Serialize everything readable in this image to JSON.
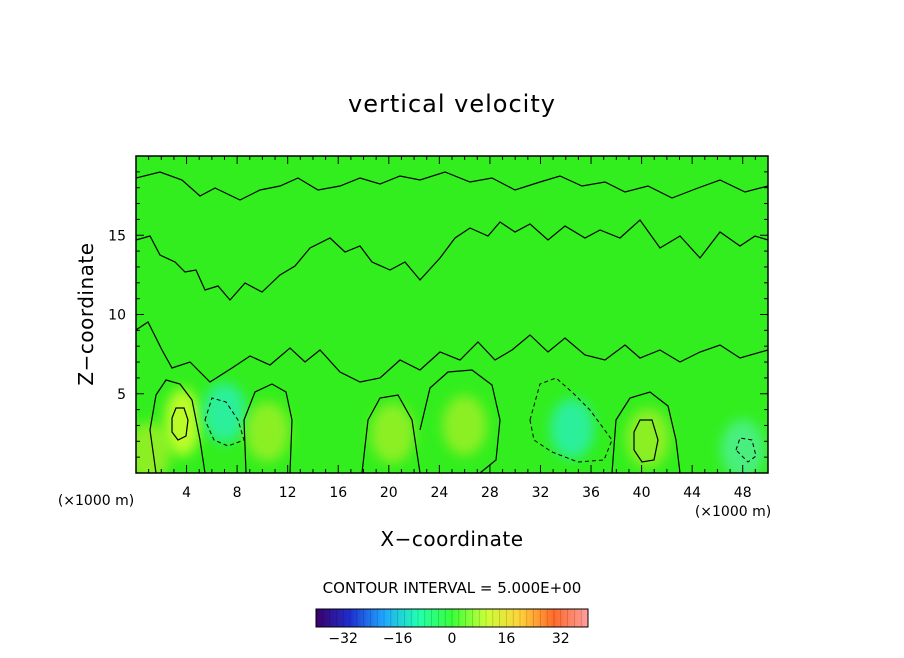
{
  "chart_data": {
    "type": "contour",
    "title": "vertical velocity",
    "xlabel": "X−coordinate",
    "ylabel": "Z−coordinate",
    "x_unit_left": "(×1000 m)",
    "x_unit_right": "(×1000 m)",
    "xlim": [
      0,
      50
    ],
    "ylim": [
      0,
      20
    ],
    "x_ticks": [
      4,
      8,
      12,
      16,
      20,
      24,
      28,
      32,
      36,
      40,
      44,
      48
    ],
    "x_tick_labels": [
      "4",
      "8",
      "12",
      "16",
      "20",
      "24",
      "28",
      "32",
      "36",
      "40",
      "44",
      "48"
    ],
    "y_ticks": [
      5,
      10,
      15
    ],
    "y_tick_labels": [
      "5",
      "10",
      "15"
    ],
    "contour_interval_text": "CONTOUR INTERVAL = 5.000E+00",
    "contour_interval": 5.0,
    "colorbar": {
      "range": [
        -40,
        40
      ],
      "ticks": [
        -32,
        -16,
        0,
        16,
        32
      ],
      "tick_labels": [
        "−32",
        "−16",
        "0",
        "16",
        "32"
      ],
      "colormap": "rainbow",
      "colors": [
        "#3a006a",
        "#1f2fd0",
        "#1fa8ff",
        "#22ffb0",
        "#38ff38",
        "#caff38",
        "#ffd23a",
        "#ff6a2a",
        "#ff9e9e"
      ]
    },
    "field_colors": {
      "background": "#32ee1e"
    },
    "features": [
      {
        "type": "updraft",
        "x": 1.0,
        "z": 1.3,
        "value": 10
      },
      {
        "type": "updraft",
        "x": 3.7,
        "z": 3.2,
        "value": 20
      },
      {
        "type": "downdraft",
        "x": 7.0,
        "z": 3.8,
        "value": -10
      },
      {
        "type": "updraft",
        "x": 10.4,
        "z": 2.6,
        "value": 10
      },
      {
        "type": "updraft",
        "x": 20.3,
        "z": 2.5,
        "value": 10
      },
      {
        "type": "updraft",
        "x": 26.0,
        "z": 3.0,
        "value": 10
      },
      {
        "type": "downdraft",
        "x": 34.5,
        "z": 2.8,
        "value": -10
      },
      {
        "type": "updraft",
        "x": 40.5,
        "z": 2.2,
        "value": 10
      },
      {
        "type": "downdraft",
        "x": 48.0,
        "z": 1.5,
        "value": -5
      }
    ]
  }
}
